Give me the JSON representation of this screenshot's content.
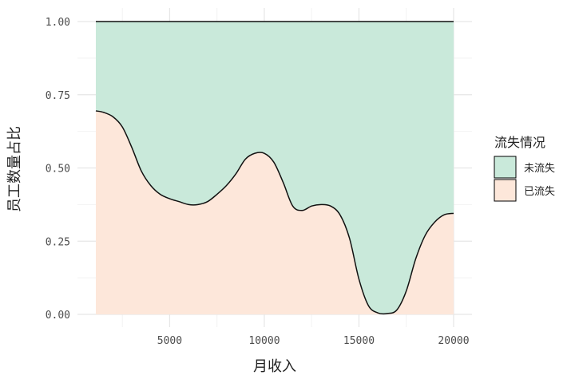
{
  "chart_data": {
    "type": "area",
    "stacked": "fill",
    "title": "",
    "xlabel": "月收入",
    "ylabel": "员工数量占比",
    "xlim": [
      0,
      21000
    ],
    "ylim": [
      0,
      1
    ],
    "x_ticks": [
      5000,
      10000,
      15000,
      20000
    ],
    "x_tick_labels": [
      "5000",
      "10000",
      "15000",
      "20000"
    ],
    "y_ticks": [
      0,
      0.25,
      0.5,
      0.75,
      1
    ],
    "y_tick_labels": [
      "0.00",
      "0.25",
      "0.50",
      "0.75",
      "1.00"
    ],
    "grid": true,
    "legend": {
      "title": "流失情况",
      "position": "right",
      "entries": [
        "未流失",
        "已流失"
      ]
    },
    "x": [
      1100,
      1500,
      2000,
      2500,
      3000,
      3500,
      4000,
      4500,
      5000,
      5500,
      6000,
      6500,
      7000,
      7500,
      8000,
      8500,
      9000,
      9500,
      10000,
      10500,
      11000,
      11500,
      12000,
      12500,
      13000,
      13500,
      14000,
      14500,
      15000,
      15500,
      16000,
      16500,
      17000,
      17500,
      18000,
      18500,
      19000,
      19500,
      20000
    ],
    "series": [
      {
        "name": "已流失",
        "color": "#fde7da",
        "values": [
          0.695,
          0.69,
          0.675,
          0.64,
          0.57,
          0.49,
          0.44,
          0.41,
          0.395,
          0.385,
          0.375,
          0.375,
          0.385,
          0.41,
          0.44,
          0.48,
          0.53,
          0.55,
          0.55,
          0.52,
          0.45,
          0.37,
          0.355,
          0.37,
          0.375,
          0.37,
          0.34,
          0.26,
          0.12,
          0.03,
          0.005,
          0.003,
          0.015,
          0.08,
          0.19,
          0.27,
          0.315,
          0.34,
          0.345
        ]
      },
      {
        "name": "未流失",
        "color": "#c9e9da",
        "values": [
          0.305,
          0.31,
          0.325,
          0.36,
          0.43,
          0.51,
          0.56,
          0.59,
          0.605,
          0.615,
          0.625,
          0.625,
          0.615,
          0.59,
          0.56,
          0.52,
          0.47,
          0.45,
          0.45,
          0.48,
          0.55,
          0.63,
          0.645,
          0.63,
          0.625,
          0.63,
          0.66,
          0.74,
          0.88,
          0.97,
          0.995,
          0.997,
          0.985,
          0.92,
          0.81,
          0.73,
          0.685,
          0.66,
          0.655
        ]
      }
    ]
  }
}
